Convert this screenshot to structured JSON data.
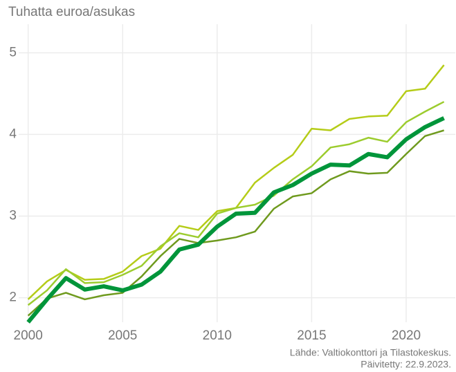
{
  "chart_data": {
    "type": "line",
    "ylabel": "Tuhatta euroa/asukas",
    "source": "Lähde: Valtiokonttori ja Tilastokeskus.",
    "updated": "Päivitetty: 22.9.2023.",
    "x": [
      2000,
      2001,
      2002,
      2003,
      2004,
      2005,
      2006,
      2007,
      2008,
      2009,
      2010,
      2011,
      2012,
      2013,
      2014,
      2015,
      2016,
      2017,
      2018,
      2019,
      2020,
      2021,
      2022
    ],
    "series": [
      {
        "color": "#b5cc18",
        "line_width": 2.5,
        "values": [
          1.98,
          2.2,
          2.34,
          2.22,
          2.23,
          2.32,
          2.51,
          2.6,
          2.88,
          2.83,
          3.06,
          3.1,
          3.41,
          3.59,
          3.75,
          4.07,
          4.05,
          4.19,
          4.22,
          4.23,
          4.53,
          4.56,
          4.85
        ]
      },
      {
        "color": "#9ccc2e",
        "line_width": 2.5,
        "values": [
          1.91,
          2.09,
          2.35,
          2.18,
          2.19,
          2.28,
          2.39,
          2.63,
          2.79,
          2.74,
          3.03,
          3.1,
          3.14,
          3.25,
          3.45,
          3.61,
          3.84,
          3.88,
          3.96,
          3.91,
          4.15,
          4.28,
          4.4
        ]
      },
      {
        "color": "#6f9a1e",
        "line_width": 2.5,
        "values": [
          1.78,
          1.99,
          2.06,
          1.98,
          2.03,
          2.06,
          2.26,
          2.51,
          2.72,
          2.67,
          2.7,
          2.74,
          2.81,
          3.09,
          3.24,
          3.28,
          3.45,
          3.55,
          3.52,
          3.53,
          3.76,
          3.98,
          4.05
        ]
      },
      {
        "color": "#00953a",
        "line_width": 6,
        "values": [
          1.7,
          1.98,
          2.24,
          2.1,
          2.14,
          2.09,
          2.16,
          2.32,
          2.59,
          2.65,
          2.87,
          3.03,
          3.04,
          3.29,
          3.38,
          3.52,
          3.63,
          3.62,
          3.76,
          3.72,
          3.94,
          4.09,
          4.2
        ]
      }
    ],
    "xlim": [
      1999.5,
      2022.6
    ],
    "xticks": [
      2000,
      2005,
      2010,
      2015,
      2020
    ],
    "ylim": [
      1.7,
      5.35
    ],
    "yticks": [
      2,
      3,
      4,
      5
    ],
    "grid": true
  }
}
